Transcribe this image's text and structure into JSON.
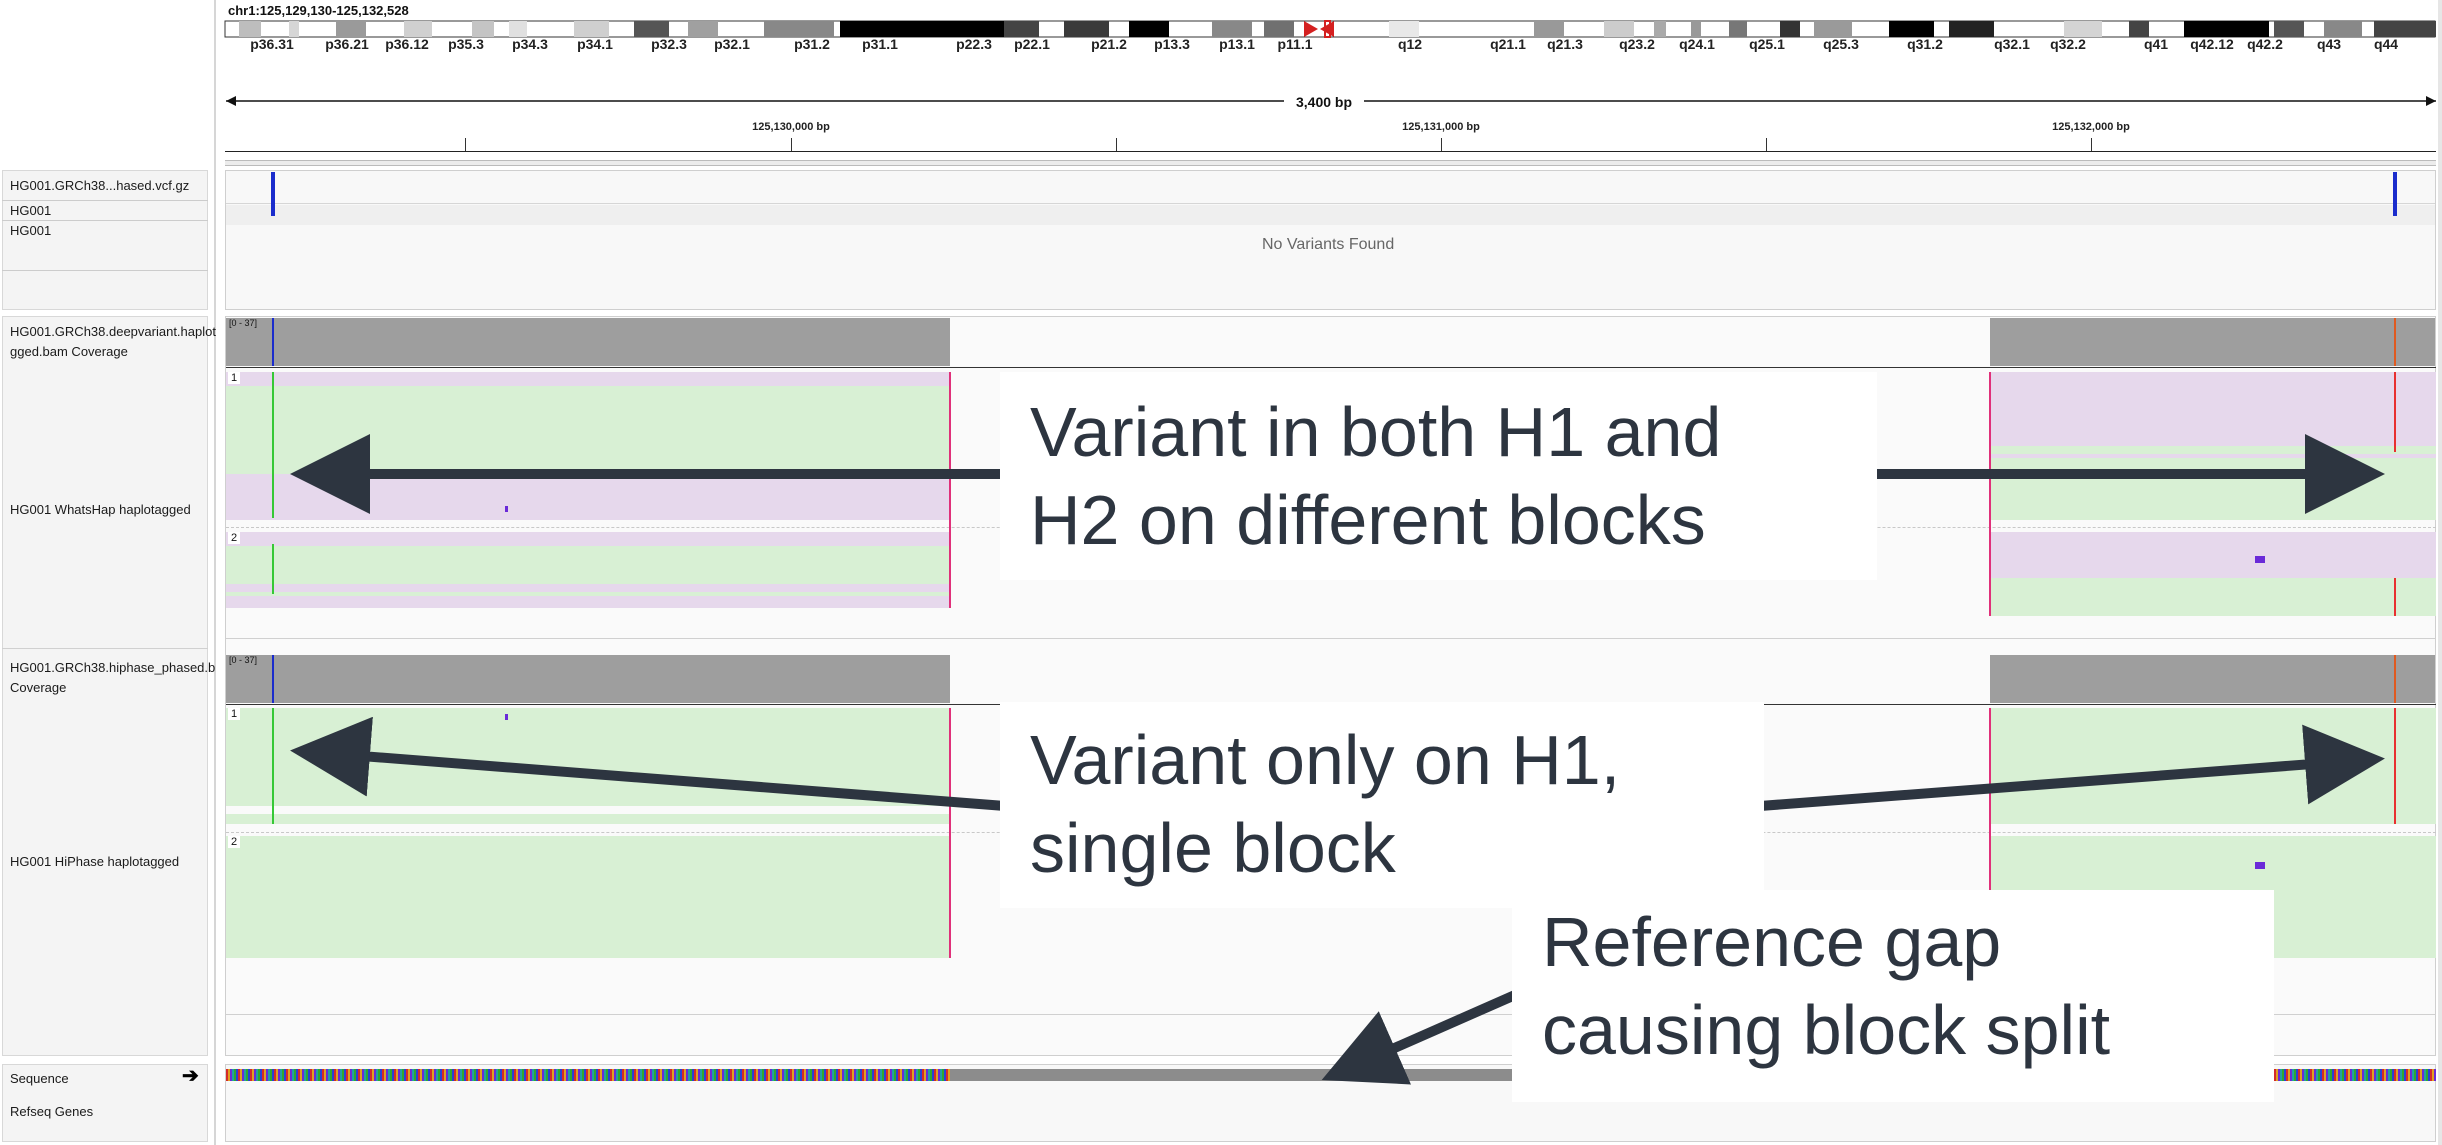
{
  "locus": "chr1:125,129,130-125,132,528",
  "ideogram_bands": [
    "p36.31",
    "p36.21",
    "p36.12",
    "p35.3",
    "p34.3",
    "p34.1",
    "p32.3",
    "p32.1",
    "p31.2",
    "p31.1",
    "p22.3",
    "p22.1",
    "p21.2",
    "p13.3",
    "p13.1",
    "p11.1",
    "q12",
    "q21.1",
    "q21.3",
    "q23.2",
    "q24.1",
    "q25.1",
    "q25.3",
    "q31.2",
    "q32.1",
    "q32.2",
    "q41",
    "q42.12",
    "q42.2",
    "q43",
    "q44"
  ],
  "ruler": {
    "span": "3,400 bp",
    "ticks": [
      "125,130,000 bp",
      "125,131,000 bp",
      "125,132,000 bp"
    ]
  },
  "tracks": {
    "vcf": {
      "name": "HG001.GRCh38...hased.vcf.gz",
      "sample1": "HG001",
      "sample2": "HG001",
      "empty_message": "No Variants Found"
    },
    "whatshap_coverage": {
      "name_line1": "HG001.GRCh38.deepvariant.haplot",
      "name_line2": "gged.bam Coverage",
      "range": "[0 - 37]"
    },
    "whatshap": {
      "name": "HG001 WhatsHap haplotagged",
      "group1": "1",
      "group2": "2"
    },
    "hiphase_coverage": {
      "name_line1": "HG001.GRCh38.hiphase_phased.b",
      "name_line2": "Coverage",
      "range": "[0 - 37]"
    },
    "hiphase": {
      "name": "HG001 HiPhase haplotagged",
      "group1": "1",
      "group2": "2"
    },
    "sequence": {
      "name": "Sequence",
      "strand_icon": "arrow-right-icon"
    },
    "refseq": {
      "name": "Refseq Genes"
    }
  },
  "annotations": {
    "callout1": [
      "Variant in both H1 and",
      "H2 on different blocks"
    ],
    "callout2": [
      "Variant only on H1,",
      "single block"
    ],
    "callout3": [
      "Reference gap",
      "causing block split"
    ]
  },
  "colors": {
    "hap1": "#d8f0d4",
    "hap2": "#e6d8ec",
    "coverage": "#9e9e9e",
    "variant_blue": "#1a2ccc",
    "block_boundary": "#e0307a",
    "arrow": "#2d3540"
  }
}
